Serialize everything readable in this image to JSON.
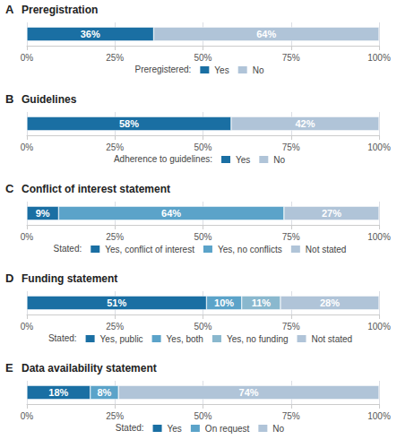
{
  "chart_data": [
    {
      "type": "bar",
      "orientation": "horizontal",
      "stacked": true,
      "panel_label": "A",
      "title": "Preregistration",
      "categories": [
        null
      ],
      "legend_title": "Preregistered:",
      "series": [
        {
          "name": "Yes",
          "color": "#1a6fa3",
          "values": [
            36
          ],
          "value_labels": [
            "36%"
          ]
        },
        {
          "name": "No",
          "color": "#b0c4d8",
          "values": [
            64
          ],
          "value_labels": [
            "64%"
          ]
        }
      ],
      "xlim": [
        0,
        100
      ],
      "xticks": [
        {
          "value": 0,
          "label": "0%"
        },
        {
          "value": 25,
          "label": "25%"
        },
        {
          "value": 50,
          "label": "50%"
        },
        {
          "value": 75,
          "label": "75%"
        },
        {
          "value": 100,
          "label": "100%"
        }
      ],
      "grid": true,
      "legend": "bottom",
      "data_labels": true,
      "tick_labels": "x"
    },
    {
      "type": "bar",
      "orientation": "horizontal",
      "stacked": true,
      "panel_label": "B",
      "title": "Guidelines",
      "categories": [
        null
      ],
      "legend_title": "Adherence to guidelines:",
      "series": [
        {
          "name": "Yes",
          "color": "#1a6fa3",
          "values": [
            58
          ],
          "value_labels": [
            "58%"
          ]
        },
        {
          "name": "No",
          "color": "#b0c4d8",
          "values": [
            42
          ],
          "value_labels": [
            "42%"
          ]
        }
      ],
      "xlim": [
        0,
        100
      ],
      "xticks": [
        {
          "value": 0,
          "label": "0%"
        },
        {
          "value": 25,
          "label": "25%"
        },
        {
          "value": 50,
          "label": "50%"
        },
        {
          "value": 75,
          "label": "75%"
        },
        {
          "value": 100,
          "label": "100%"
        }
      ],
      "grid": true,
      "legend": "bottom",
      "data_labels": true,
      "tick_labels": "x"
    },
    {
      "type": "bar",
      "orientation": "horizontal",
      "stacked": true,
      "panel_label": "C",
      "title": "Conflict of interest statement",
      "categories": [
        null
      ],
      "legend_title": "Stated:",
      "series": [
        {
          "name": "Yes, conflict of interest",
          "color": "#1a6fa3",
          "values": [
            9
          ],
          "value_labels": [
            "9%"
          ]
        },
        {
          "name": "Yes, no conflicts",
          "color": "#5ba3c9",
          "values": [
            64
          ],
          "value_labels": [
            "64%"
          ]
        },
        {
          "name": "Not stated",
          "color": "#b0c4d8",
          "values": [
            27
          ],
          "value_labels": [
            "27%"
          ]
        }
      ],
      "xlim": [
        0,
        100
      ],
      "xticks": [
        {
          "value": 0,
          "label": "0%"
        },
        {
          "value": 25,
          "label": "25%"
        },
        {
          "value": 50,
          "label": "50%"
        },
        {
          "value": 75,
          "label": "75%"
        },
        {
          "value": 100,
          "label": "100%"
        }
      ],
      "grid": true,
      "legend": "bottom",
      "data_labels": true,
      "tick_labels": "x"
    },
    {
      "type": "bar",
      "orientation": "horizontal",
      "stacked": true,
      "panel_label": "D",
      "title": "Funding statement",
      "categories": [
        null
      ],
      "legend_title": "Stated:",
      "series": [
        {
          "name": "Yes, public",
          "color": "#1a6fa3",
          "values": [
            51
          ],
          "value_labels": [
            "51%"
          ]
        },
        {
          "name": "Yes, both",
          "color": "#5ba3c9",
          "values": [
            10
          ],
          "value_labels": [
            "10%"
          ]
        },
        {
          "name": "Yes, no funding",
          "color": "#8ab8ce",
          "values": [
            11
          ],
          "value_labels": [
            "11%"
          ]
        },
        {
          "name": "Not stated",
          "color": "#b0c4d8",
          "values": [
            28
          ],
          "value_labels": [
            "28%"
          ]
        }
      ],
      "xlim": [
        0,
        100
      ],
      "xticks": [
        {
          "value": 0,
          "label": "0%"
        },
        {
          "value": 25,
          "label": "25%"
        },
        {
          "value": 50,
          "label": "50%"
        },
        {
          "value": 75,
          "label": "75%"
        },
        {
          "value": 100,
          "label": "100%"
        }
      ],
      "grid": true,
      "legend": "bottom",
      "data_labels": true,
      "tick_labels": "x"
    },
    {
      "type": "bar",
      "orientation": "horizontal",
      "stacked": true,
      "panel_label": "E",
      "title": "Data availability statement",
      "categories": [
        null
      ],
      "legend_title": "Stated:",
      "series": [
        {
          "name": "Yes",
          "color": "#1a6fa3",
          "values": [
            18
          ],
          "value_labels": [
            "18%"
          ]
        },
        {
          "name": "On request",
          "color": "#5ba3c9",
          "values": [
            8
          ],
          "value_labels": [
            "8%"
          ]
        },
        {
          "name": "No",
          "color": "#b0c4d8",
          "values": [
            74
          ],
          "value_labels": [
            "74%"
          ]
        }
      ],
      "xlim": [
        0,
        100
      ],
      "xticks": [
        {
          "value": 0,
          "label": "0%"
        },
        {
          "value": 25,
          "label": "25%"
        },
        {
          "value": 50,
          "label": "50%"
        },
        {
          "value": 75,
          "label": "75%"
        },
        {
          "value": 100,
          "label": "100%"
        }
      ],
      "grid": true,
      "legend": "bottom",
      "data_labels": true,
      "tick_labels": "x"
    }
  ]
}
